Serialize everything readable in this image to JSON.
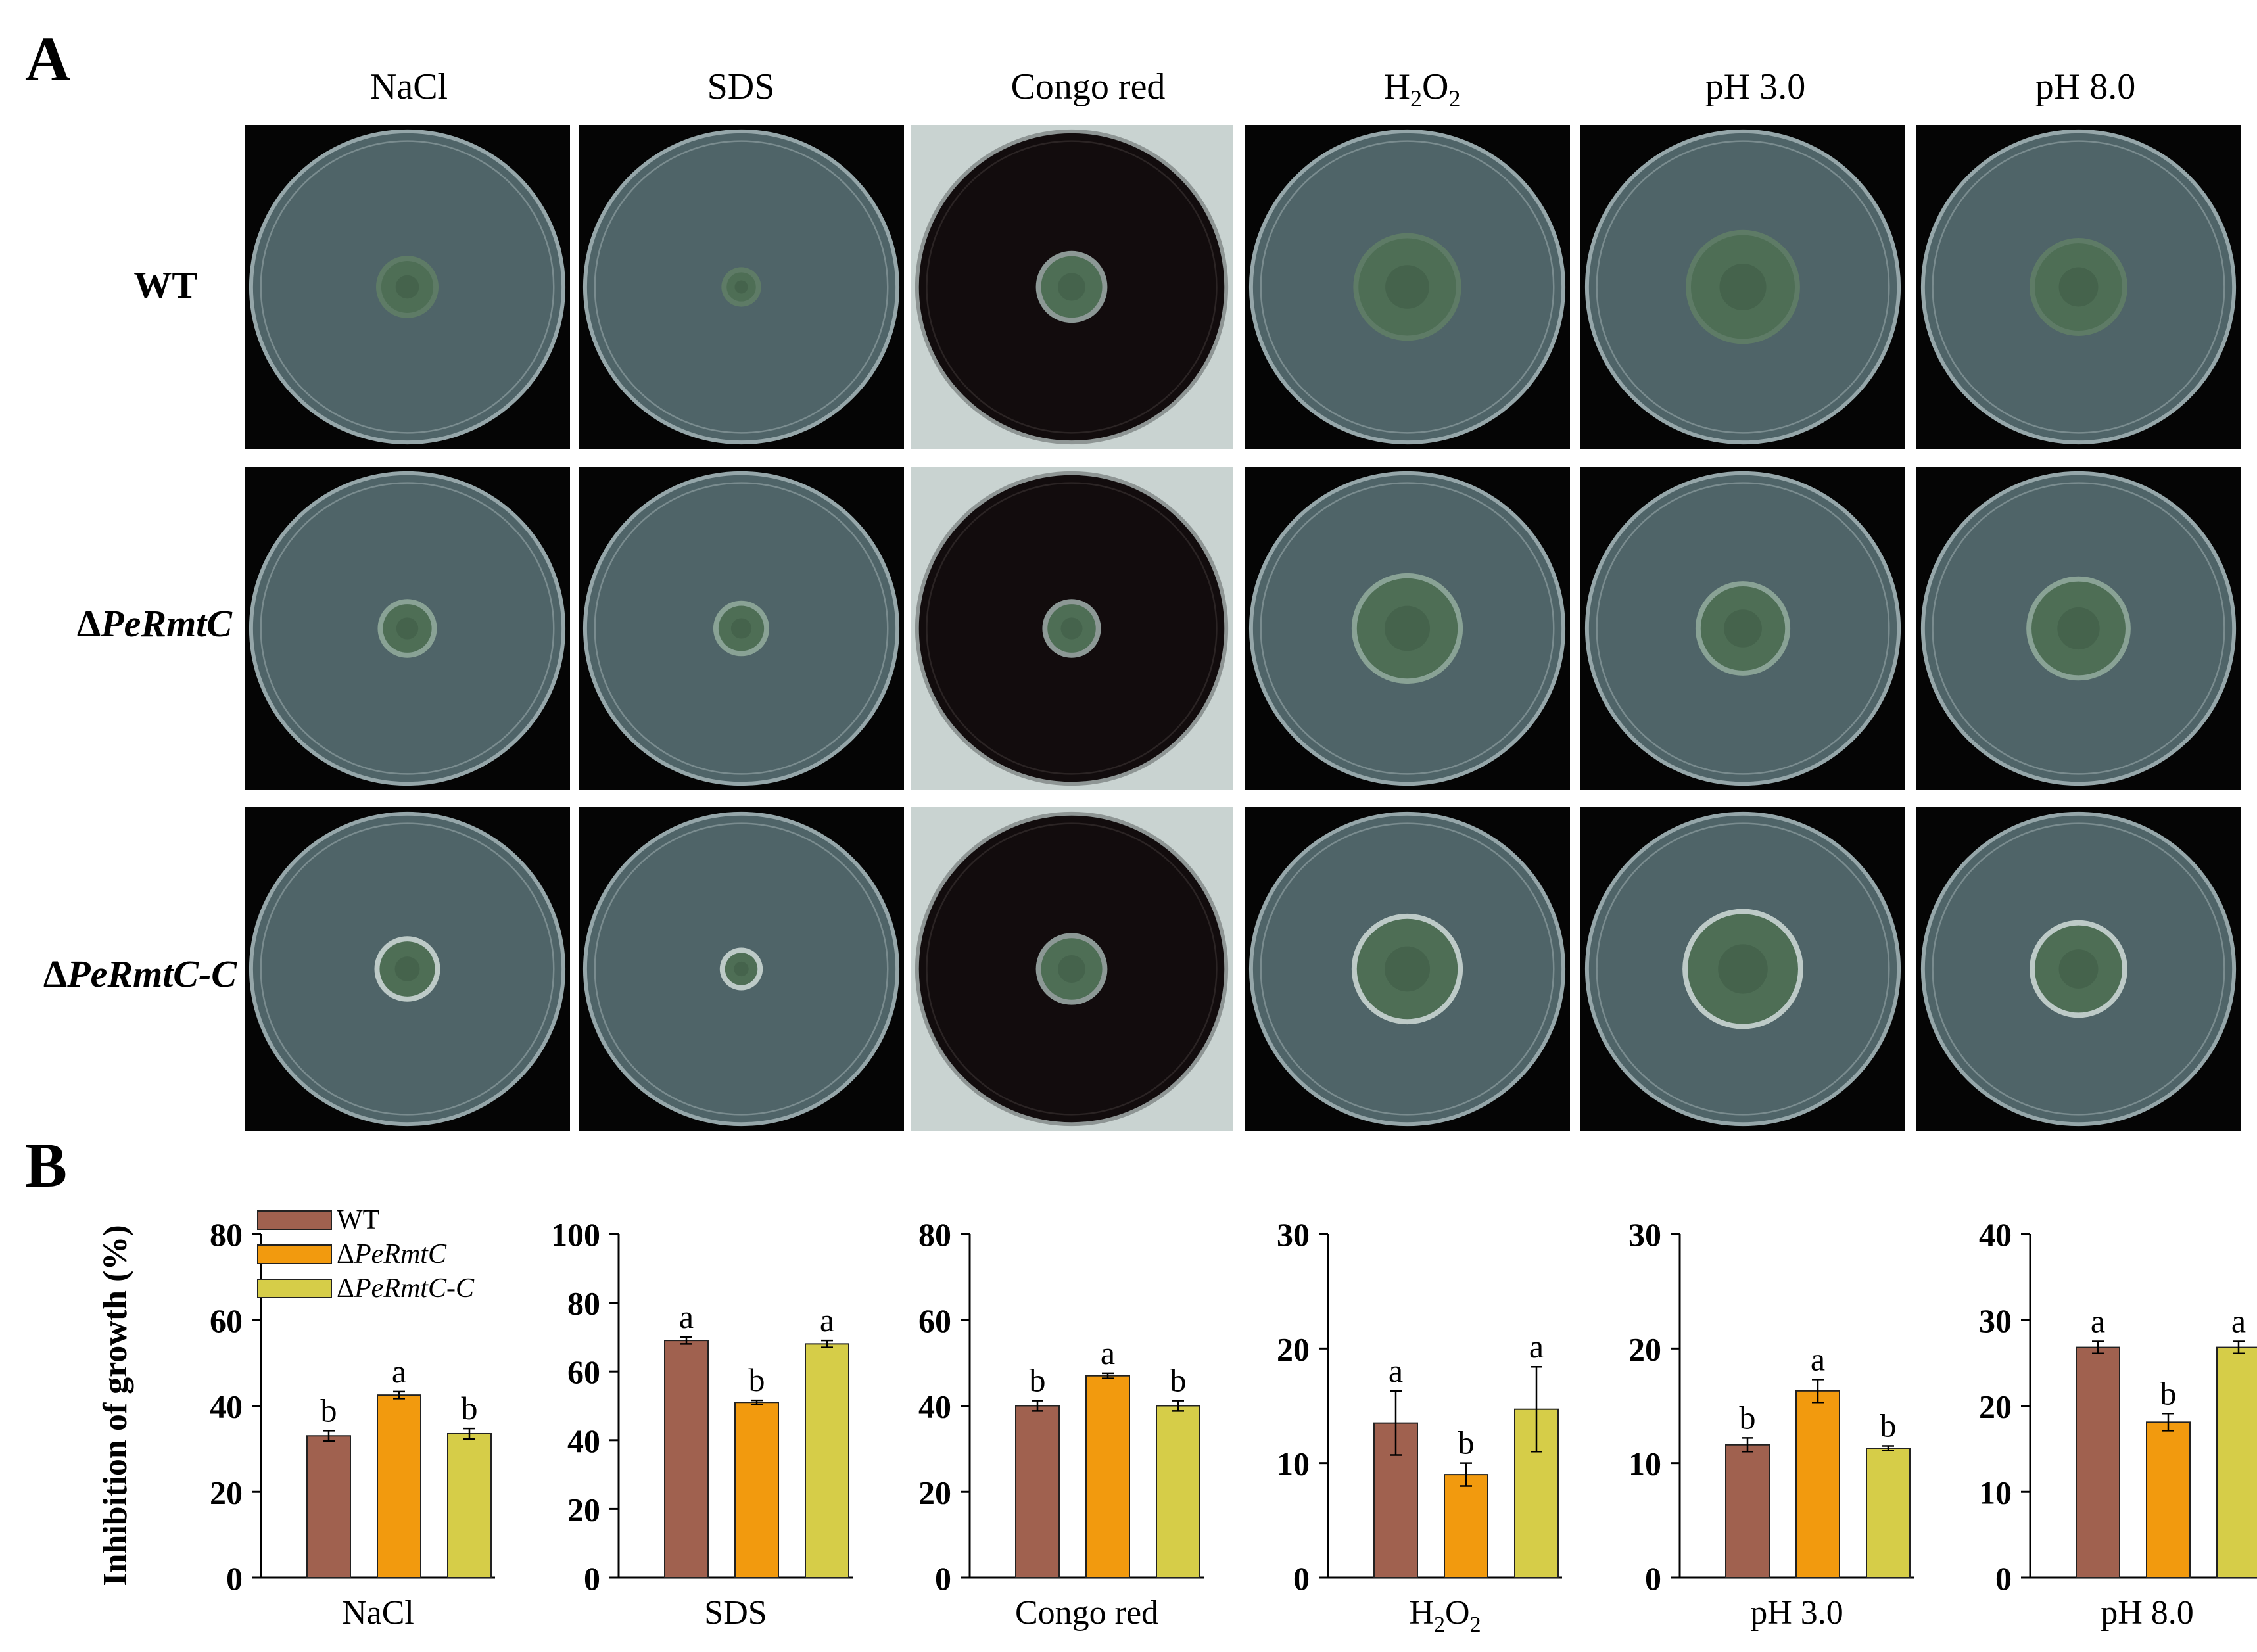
{
  "panel_labels": {
    "A": "A",
    "B": "B"
  },
  "panel_a": {
    "columns": [
      "NaCl",
      "SDS",
      "Congo red",
      "H2O2",
      "pH 3.0",
      "pH 8.0"
    ],
    "h2o2_parts": {
      "main": "H",
      "sub1": "2",
      "mid": "O",
      "sub2": "2"
    },
    "rows": [
      {
        "prefix": "",
        "label": "WT"
      },
      {
        "prefix": "Δ",
        "label": "PeRmtC"
      },
      {
        "prefix": "Δ",
        "label": "PeRmtC-C"
      }
    ]
  },
  "colors": {
    "WT": "#a0614f",
    "PeRmtC": "#f29a0e",
    "PeRmtC-C": "#d6cd48",
    "plate_bg": "#4f6468",
    "colony": "#4e6e55",
    "congo_bg": "#120c0d",
    "congo_frame": "#c9d3d1"
  },
  "chart_data": [
    {
      "type": "bar",
      "title": "",
      "xlabel": "NaCl",
      "ylabel": "Inhibition of growth (%)",
      "ylim": [
        0,
        80
      ],
      "yticks": [
        0,
        20,
        40,
        60,
        80
      ],
      "categories": [
        "WT",
        "ΔPeRmtC",
        "ΔPeRmtC-C"
      ],
      "values": [
        33,
        42.5,
        33.5
      ],
      "errors": [
        1.2,
        0.8,
        1.2
      ],
      "letters": [
        "b",
        "a",
        "b"
      ],
      "legend": [
        "WT",
        "ΔPeRmtC",
        "ΔPeRmtC-C"
      ],
      "grid": false
    },
    {
      "type": "bar",
      "title": "",
      "xlabel": "SDS",
      "ylabel": "",
      "ylim": [
        0,
        100
      ],
      "yticks": [
        0,
        20,
        40,
        60,
        80,
        100
      ],
      "categories": [
        "WT",
        "ΔPeRmtC",
        "ΔPeRmtC-C"
      ],
      "values": [
        69,
        51,
        68
      ],
      "errors": [
        1.0,
        0.6,
        1.0
      ],
      "letters": [
        "a",
        "b",
        "a"
      ],
      "grid": false
    },
    {
      "type": "bar",
      "title": "",
      "xlabel": "Congo red",
      "ylabel": "",
      "ylim": [
        0,
        80
      ],
      "yticks": [
        0,
        20,
        40,
        60,
        80
      ],
      "categories": [
        "WT",
        "ΔPeRmtC",
        "ΔPeRmtC-C"
      ],
      "values": [
        40,
        47,
        40
      ],
      "errors": [
        1.2,
        0.6,
        1.2
      ],
      "letters": [
        "b",
        "a",
        "b"
      ],
      "grid": false
    },
    {
      "type": "bar",
      "title": "",
      "xlabel": "H2O2",
      "ylabel": "",
      "ylim": [
        0,
        30
      ],
      "yticks": [
        0,
        10,
        20,
        30
      ],
      "categories": [
        "WT",
        "ΔPeRmtC",
        "ΔPeRmtC-C"
      ],
      "values": [
        13.5,
        9,
        14.7
      ],
      "errors": [
        2.8,
        1.0,
        3.7
      ],
      "letters": [
        "a",
        "b",
        "a"
      ],
      "grid": false
    },
    {
      "type": "bar",
      "title": "",
      "xlabel": "pH 3.0",
      "ylabel": "",
      "ylim": [
        0,
        30
      ],
      "yticks": [
        0,
        10,
        20,
        30
      ],
      "categories": [
        "WT",
        "ΔPeRmtC",
        "ΔPeRmtC-C"
      ],
      "values": [
        11.6,
        16.3,
        11.3
      ],
      "errors": [
        0.6,
        1.0,
        0.2
      ],
      "letters": [
        "b",
        "a",
        "b"
      ],
      "grid": false
    },
    {
      "type": "bar",
      "title": "",
      "xlabel": "pH 8.0",
      "ylabel": "",
      "ylim": [
        0,
        40
      ],
      "yticks": [
        0,
        10,
        20,
        30,
        40
      ],
      "categories": [
        "WT",
        "ΔPeRmtC",
        "ΔPeRmtC-C"
      ],
      "values": [
        26.8,
        18.1,
        26.8
      ],
      "errors": [
        0.7,
        1.0,
        0.7
      ],
      "letters": [
        "a",
        "b",
        "a"
      ],
      "grid": false
    }
  ]
}
